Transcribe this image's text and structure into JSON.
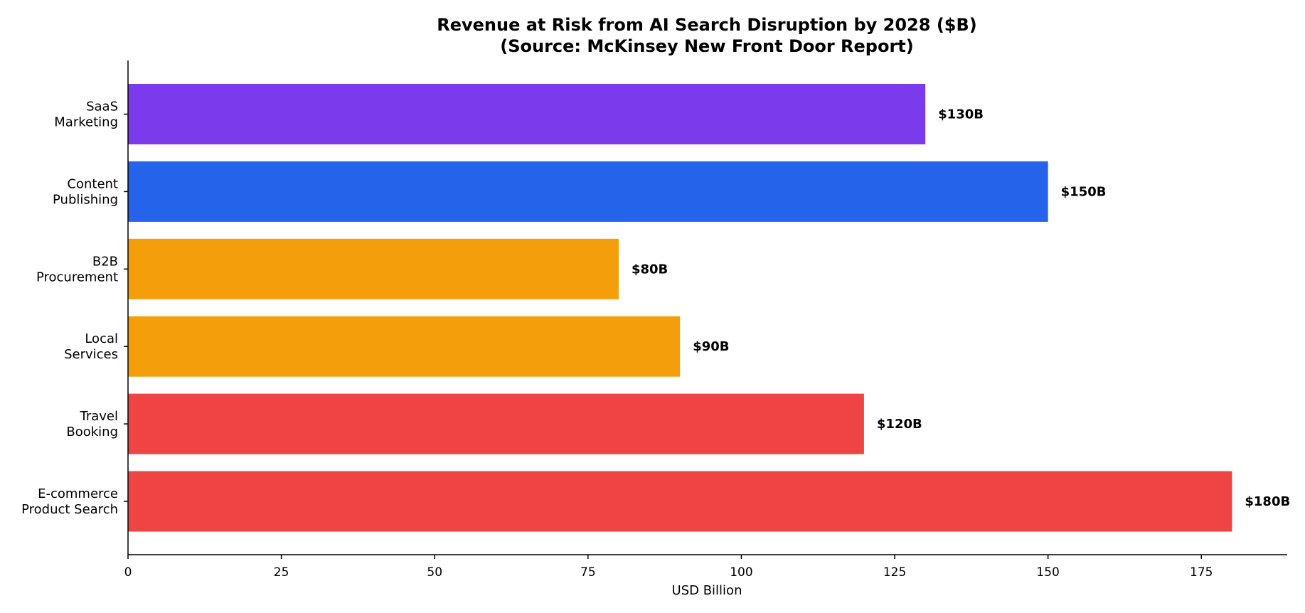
{
  "chart_data": {
    "type": "bar",
    "orientation": "horizontal",
    "title": "Revenue at Risk from AI Search Disruption by 2028 ($B)",
    "subtitle": "(Source: McKinsey New Front Door Report)",
    "xlabel": "USD Billion",
    "ylabel": "",
    "xlim": [
      0,
      189
    ],
    "xticks": [
      0,
      25,
      50,
      75,
      100,
      125,
      150,
      175
    ],
    "grid": false,
    "categories": [
      [
        "E-commerce",
        "Product Search"
      ],
      [
        "Travel",
        "Booking"
      ],
      [
        "Local",
        "Services"
      ],
      [
        "B2B",
        "Procurement"
      ],
      [
        "Content",
        "Publishing"
      ],
      [
        "SaaS",
        "Marketing"
      ]
    ],
    "values": [
      180,
      120,
      90,
      80,
      150,
      130
    ],
    "value_labels": [
      "$180B",
      "$120B",
      "$90B",
      "$80B",
      "$150B",
      "$130B"
    ],
    "colors": [
      "#ef4444",
      "#ef4444",
      "#f59e0b",
      "#f59e0b",
      "#2563eb",
      "#7c3aed"
    ]
  }
}
